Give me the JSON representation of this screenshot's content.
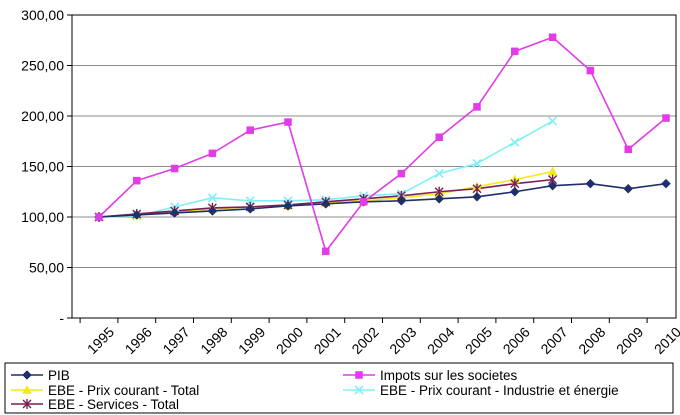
{
  "chart_data": {
    "type": "line",
    "title": "",
    "xlabel": "",
    "ylabel": "",
    "categories": [
      "1995",
      "1996",
      "1997",
      "1998",
      "1999",
      "2000",
      "2001",
      "2002",
      "2003",
      "2004",
      "2005",
      "2006",
      "2007",
      "2008",
      "2009",
      "2010"
    ],
    "ylim": [
      0,
      300
    ],
    "y_ticks": [
      0,
      50,
      100,
      150,
      200,
      250,
      300
    ],
    "y_tick_labels": [
      "-",
      "50,00",
      "100,00",
      "150,00",
      "200,00",
      "250,00",
      "300,00"
    ],
    "grid": {
      "horizontal": true,
      "vertical": false
    },
    "legend": {
      "position": "bottom",
      "columns": 2
    },
    "series": [
      {
        "name": "PIB",
        "color": "#1f2f6b",
        "marker": "diamond",
        "values": [
          100,
          102,
          104,
          106,
          108,
          111,
          113,
          115,
          116,
          118,
          120,
          125,
          131,
          133,
          128,
          133
        ]
      },
      {
        "name": "Impots sur les societes",
        "color": "#e23be8",
        "marker": "square",
        "values": [
          100,
          136,
          148,
          163,
          186,
          194,
          66,
          115,
          143,
          179,
          209,
          264,
          278,
          245,
          167,
          198
        ]
      },
      {
        "name": "EBE - Prix courant - Total",
        "color": "#f2ea1c",
        "marker": "triangle",
        "values": [
          100,
          102,
          105,
          108,
          110,
          111,
          114,
          116,
          119,
          123,
          130,
          137,
          145,
          null,
          null,
          null
        ]
      },
      {
        "name": "EBE - Prix courant - Industrie et énergie",
        "color": "#7ff0f7",
        "marker": "x",
        "values": [
          100,
          101,
          110,
          119,
          116,
          116,
          117,
          121,
          123,
          143,
          153,
          174,
          195,
          null,
          null,
          null
        ]
      },
      {
        "name": "EBE - Services - Total",
        "color": "#7a1f55",
        "marker": "star",
        "values": [
          100,
          103,
          106,
          109,
          110,
          112,
          115,
          118,
          121,
          125,
          128,
          133,
          137,
          null,
          null,
          null
        ]
      }
    ]
  }
}
